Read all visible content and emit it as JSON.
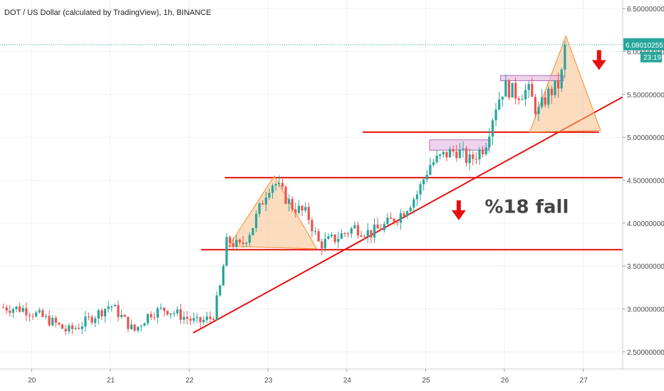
{
  "title": "DOT / US Dollar (calculated by TradingView), 1h, BINANCE",
  "colors": {
    "up": "#26a69a",
    "down": "#ef5350",
    "red_line": "#e8100e",
    "triangle_fill": "#f7c08a",
    "triangle_stroke": "#f08d2e",
    "box_fill": "#e4b6e4",
    "box_stroke": "#b46cb4",
    "price_badge": "#26a69a",
    "grid": "#eef0f3"
  },
  "annotation": "%18 fall",
  "last_price": "6.08010255",
  "countdown": "23:19",
  "chart_data": {
    "type": "candlestick",
    "ylim": [
      2.3,
      6.6
    ],
    "xlim": [
      19.6,
      27.5
    ],
    "y_ticks": [
      {
        "value": 6.5,
        "label": "6.50000000"
      },
      {
        "value": 6.0,
        "label": "6.00000000"
      },
      {
        "value": 5.5,
        "label": "5.50000000"
      },
      {
        "value": 5.0,
        "label": "5.00000000"
      },
      {
        "value": 4.5,
        "label": "4.50000000"
      },
      {
        "value": 4.0,
        "label": "4.00000000"
      },
      {
        "value": 3.5,
        "label": "3.50000000"
      },
      {
        "value": 3.0,
        "label": "3.00000000"
      },
      {
        "value": 2.5,
        "label": "2.50000000"
      }
    ],
    "x_ticks": [
      {
        "value": 20,
        "label": "20"
      },
      {
        "value": 21,
        "label": "21"
      },
      {
        "value": 22,
        "label": "22"
      },
      {
        "value": 23,
        "label": "23"
      },
      {
        "value": 24,
        "label": "24"
      },
      {
        "value": 25,
        "label": "25"
      },
      {
        "value": 26,
        "label": "26"
      },
      {
        "value": 27,
        "label": "27"
      }
    ],
    "path": [
      [
        19.6,
        3.02
      ],
      [
        19.9,
        3.0
      ],
      [
        20.1,
        2.92
      ],
      [
        20.3,
        2.83
      ],
      [
        20.45,
        2.74
      ],
      [
        20.6,
        2.8
      ],
      [
        20.8,
        2.92
      ],
      [
        21.0,
        3.05
      ],
      [
        21.15,
        2.9
      ],
      [
        21.3,
        2.74
      ],
      [
        21.5,
        2.95
      ],
      [
        21.7,
        3.0
      ],
      [
        21.9,
        2.92
      ],
      [
        22.1,
        2.84
      ],
      [
        22.3,
        2.9
      ],
      [
        22.4,
        3.28
      ],
      [
        22.48,
        3.8
      ],
      [
        22.65,
        3.72
      ],
      [
        22.8,
        3.95
      ],
      [
        23.0,
        4.42
      ],
      [
        23.08,
        4.48
      ],
      [
        23.3,
        4.2
      ],
      [
        23.5,
        4.1
      ],
      [
        23.65,
        3.75
      ],
      [
        23.85,
        3.82
      ],
      [
        24.1,
        3.95
      ],
      [
        24.3,
        3.88
      ],
      [
        24.5,
        3.98
      ],
      [
        24.7,
        4.12
      ],
      [
        24.9,
        4.35
      ],
      [
        25.05,
        4.68
      ],
      [
        25.25,
        4.8
      ],
      [
        25.4,
        4.85
      ],
      [
        25.55,
        4.72
      ],
      [
        25.75,
        4.9
      ],
      [
        25.88,
        5.35
      ],
      [
        26.0,
        5.6
      ],
      [
        26.15,
        5.5
      ],
      [
        26.3,
        5.55
      ],
      [
        26.42,
        5.28
      ],
      [
        26.55,
        5.5
      ],
      [
        26.7,
        5.62
      ],
      [
        26.8,
        6.08
      ]
    ],
    "horizontal_levels": [
      {
        "y": 3.69,
        "x_start": 22.15
      },
      {
        "y": 4.53,
        "x_start": 22.45
      },
      {
        "y": 5.06,
        "x_start": 24.2,
        "x_end": 27.2
      }
    ],
    "trendline": {
      "x1": 22.05,
      "y1": 2.72,
      "x2": 27.5,
      "y2": 5.47
    },
    "triangles": [
      [
        [
          22.5,
          3.73
        ],
        [
          23.08,
          4.55
        ],
        [
          23.62,
          3.7
        ]
      ],
      [
        [
          26.32,
          5.06
        ],
        [
          26.78,
          6.18
        ],
        [
          27.22,
          5.08
        ]
      ]
    ],
    "boxes": [
      {
        "x1": 25.05,
        "x2": 25.8,
        "y1": 4.85,
        "y2": 4.97
      },
      {
        "x1": 25.95,
        "x2": 26.75,
        "y1": 5.66,
        "y2": 5.72
      }
    ],
    "arrows": [
      {
        "x": 25.42,
        "y": 4.1
      },
      {
        "x": 27.2,
        "y": 5.85
      }
    ],
    "annotation_position": {
      "x": 25.75,
      "y": 4.12
    }
  }
}
